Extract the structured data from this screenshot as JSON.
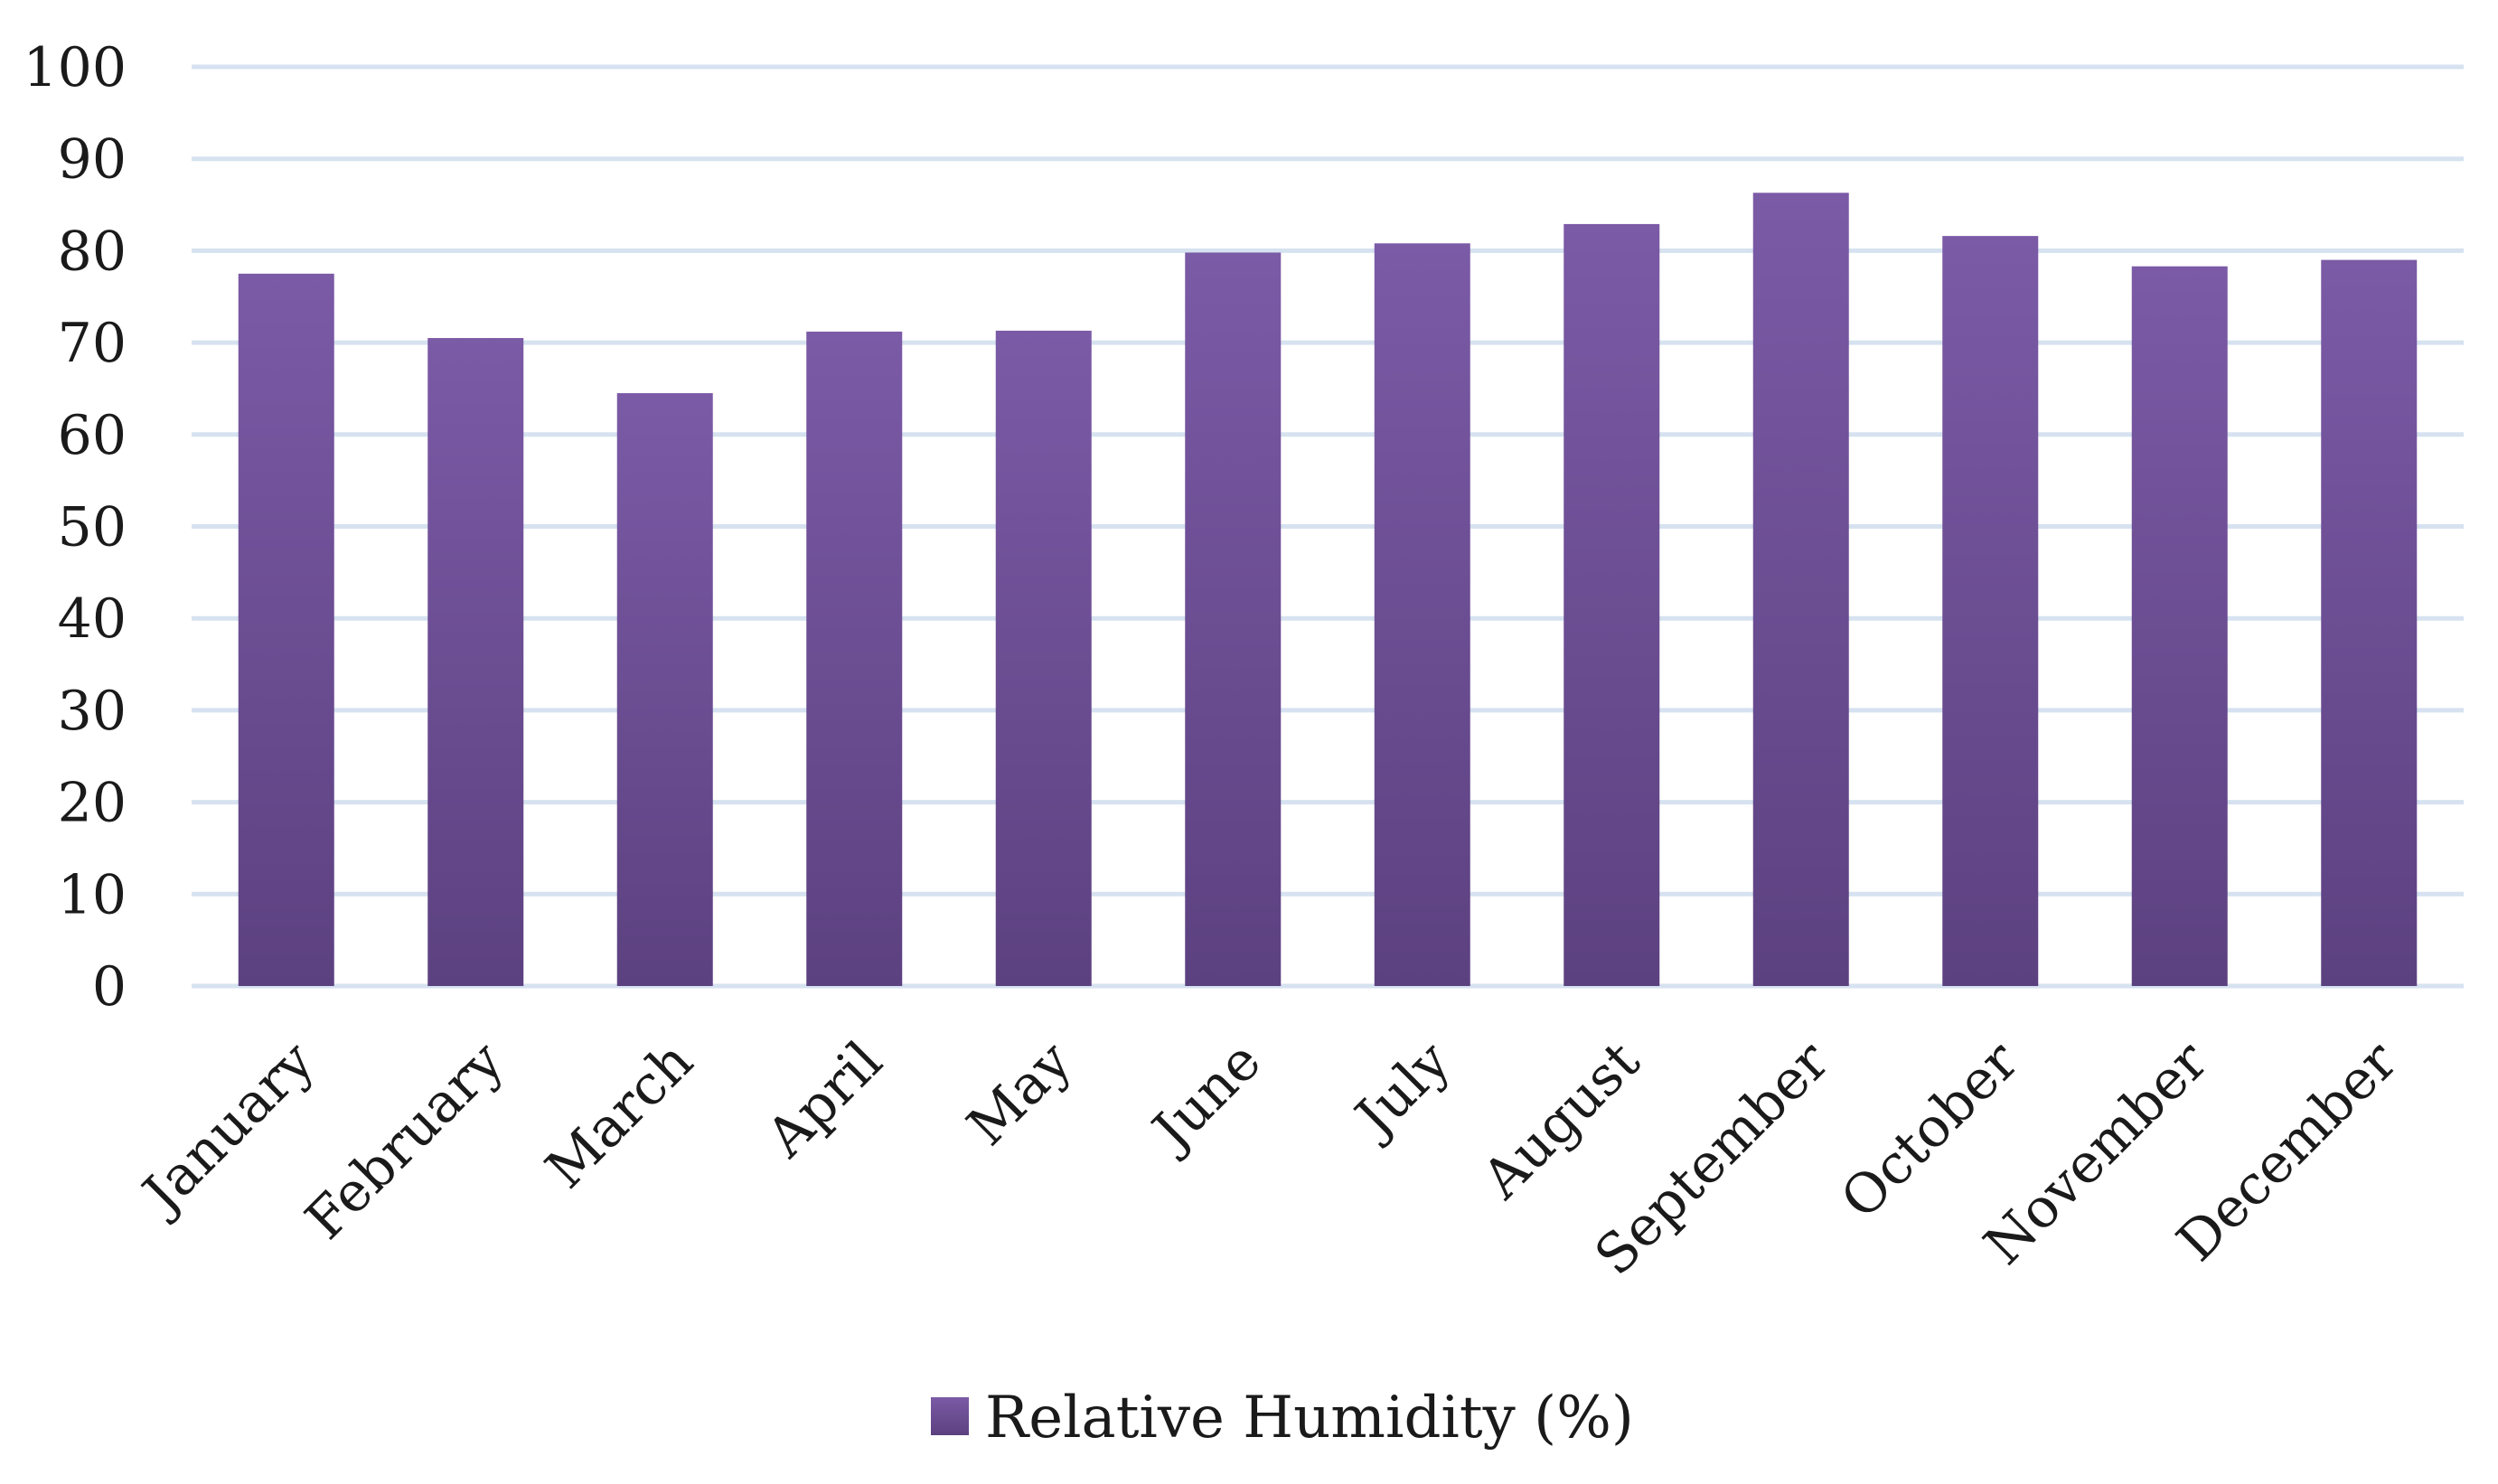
{
  "chart_data": {
    "type": "bar",
    "title": "",
    "xlabel": "",
    "ylabel": "",
    "categories": [
      "January",
      "February",
      "March",
      "April",
      "May",
      "June",
      "July",
      "August",
      "September",
      "October",
      "November",
      "December"
    ],
    "series": [
      {
        "name": "Relative Humidity (%)",
        "values": [
          77.5,
          70.5,
          64.5,
          71.2,
          71.3,
          79.8,
          80.8,
          82.9,
          86.3,
          81.6,
          78.3,
          79.0
        ]
      }
    ],
    "ylim": [
      0,
      100
    ],
    "yticks": [
      0,
      10,
      20,
      30,
      40,
      50,
      60,
      70,
      80,
      90,
      100
    ],
    "grid": true,
    "legend": "bottom-center",
    "colors": {
      "bar_top": "#7b5aa6",
      "bar_bottom": "#5c4180",
      "gridline": "#d6e2f0",
      "text": "#1a1a1a"
    }
  }
}
